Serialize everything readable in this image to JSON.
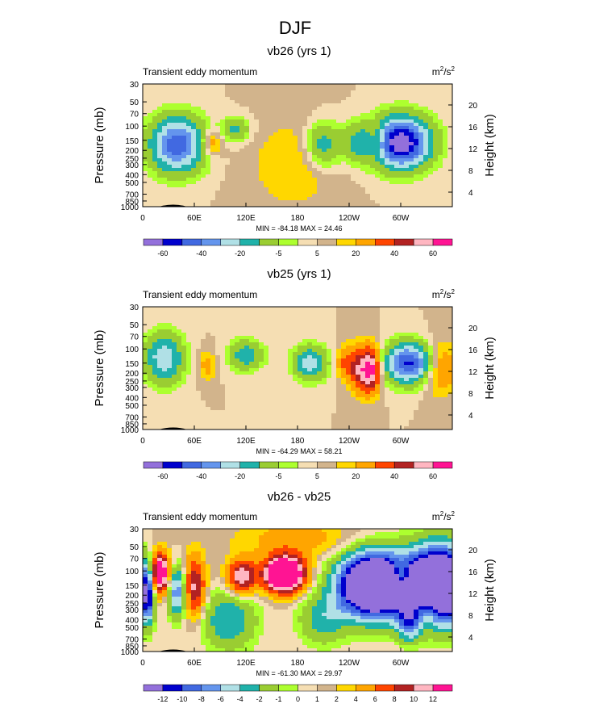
{
  "figure_title": "DJF",
  "chart_data": [
    {
      "type": "heatmap",
      "title": "vb26 (yrs 1)",
      "left_label": "Transient eddy momentum",
      "units_base": "m",
      "units_exp1": "2",
      "units_mid": "/s",
      "units_exp2": "2",
      "ylabel": "Pressure (mb)",
      "ylabel_right": "Height (km)",
      "y_ticks": [
        "30",
        "50",
        "70",
        "100",
        "150",
        "200",
        "250",
        "300",
        "400",
        "500",
        "700",
        "850",
        "1000"
      ],
      "y_right_ticks": [
        "20",
        "16",
        "12",
        "8",
        "4"
      ],
      "x_ticks": [
        "0",
        "60E",
        "120E",
        "180",
        "120W",
        "60W"
      ],
      "min_max_text": "MIN = -84.18  MAX = 24.46",
      "colorbar_labels": [
        "-60",
        "-40",
        "-20",
        "-5",
        "5",
        "20",
        "40",
        "60"
      ],
      "levels": [
        -70,
        -60,
        -50,
        -40,
        -30,
        -20,
        -10,
        -5,
        0,
        5,
        10,
        20,
        30,
        40,
        50,
        60,
        70
      ],
      "blobs": [
        {
          "lon": 40,
          "p": 170,
          "value": -58,
          "wx": 22,
          "wy": 0.55
        },
        {
          "lon": 108,
          "p": 110,
          "value": -22,
          "wx": 12,
          "wy": 0.25
        },
        {
          "lon": 210,
          "p": 170,
          "value": -28,
          "wx": 14,
          "wy": 0.45
        },
        {
          "lon": 300,
          "p": 160,
          "value": -80,
          "wx": 24,
          "wy": 0.5
        },
        {
          "lon": 248,
          "p": 160,
          "value": -18,
          "wx": 12,
          "wy": 0.4
        },
        {
          "lon": 80,
          "p": 160,
          "value": 22,
          "wx": 9,
          "wy": 0.25
        },
        {
          "lon": 273,
          "p": 150,
          "value": 18,
          "wx": 8,
          "wy": 0.35
        },
        {
          "lon": 175,
          "p": 300,
          "value": 10,
          "wx": 35,
          "wy": 0.9
        }
      ]
    },
    {
      "type": "heatmap",
      "title": "vb25 (yrs 1)",
      "left_label": "Transient eddy momentum",
      "units_base": "m",
      "units_exp1": "2",
      "units_mid": "/s",
      "units_exp2": "2",
      "ylabel": "Pressure (mb)",
      "ylabel_right": "Height (km)",
      "y_ticks": [
        "30",
        "50",
        "70",
        "100",
        "150",
        "200",
        "250",
        "300",
        "400",
        "500",
        "700",
        "850",
        "1000"
      ],
      "y_right_ticks": [
        "20",
        "16",
        "12",
        "8",
        "4"
      ],
      "x_ticks": [
        "0",
        "60E",
        "120E",
        "180",
        "120W",
        "60W"
      ],
      "min_max_text": "MIN = -64.29  MAX = 58.21",
      "colorbar_labels": [
        "-60",
        "-40",
        "-20",
        "-5",
        "5",
        "20",
        "40",
        "60"
      ],
      "levels": [
        -70,
        -60,
        -50,
        -40,
        -30,
        -20,
        -10,
        -5,
        0,
        5,
        10,
        20,
        30,
        40,
        50,
        60,
        70
      ],
      "blobs": [
        {
          "lon": 25,
          "p": 130,
          "value": -38,
          "wx": 16,
          "wy": 0.5
        },
        {
          "lon": 120,
          "p": 120,
          "value": -28,
          "wx": 14,
          "wy": 0.3
        },
        {
          "lon": 195,
          "p": 150,
          "value": -35,
          "wx": 14,
          "wy": 0.35
        },
        {
          "lon": 310,
          "p": 150,
          "value": -62,
          "wx": 20,
          "wy": 0.4
        },
        {
          "lon": 265,
          "p": 180,
          "value": 58,
          "wx": 8,
          "wy": 0.45
        },
        {
          "lon": 250,
          "p": 180,
          "value": 30,
          "wx": 7,
          "wy": 0.45
        },
        {
          "lon": 235,
          "p": 150,
          "value": 22,
          "wx": 7,
          "wy": 0.35
        },
        {
          "lon": 345,
          "p": 170,
          "value": 25,
          "wx": 14,
          "wy": 0.5
        },
        {
          "lon": 75,
          "p": 160,
          "value": 14,
          "wx": 7,
          "wy": 0.3
        }
      ]
    },
    {
      "type": "heatmap",
      "title": "vb26 - vb25",
      "left_label": "Transient eddy momentum",
      "units_base": "m",
      "units_exp1": "2",
      "units_mid": "/s",
      "units_exp2": "2",
      "ylabel": "Pressure (mb)",
      "ylabel_right": "Height (km)",
      "y_ticks": [
        "30",
        "50",
        "70",
        "100",
        "150",
        "200",
        "250",
        "300",
        "400",
        "500",
        "700",
        "850",
        "1000"
      ],
      "y_right_ticks": [
        "20",
        "16",
        "12",
        "8",
        "4"
      ],
      "x_ticks": [
        "0",
        "60E",
        "120E",
        "180",
        "120W",
        "60W"
      ],
      "min_max_text": "MIN = -61.30  MAX = 29.97",
      "colorbar_labels": [
        "-12",
        "-10",
        "-8",
        "-6",
        "-4",
        "-2",
        "-1",
        "0",
        "1",
        "2",
        "4",
        "6",
        "8",
        "10",
        "12"
      ],
      "levels": [
        -14,
        -12,
        -10,
        -8,
        -6,
        -4,
        -2,
        -1,
        0,
        1,
        2,
        4,
        6,
        8,
        10,
        12,
        14
      ],
      "blobs": [
        {
          "lon": 270,
          "p": 150,
          "value": -30,
          "wx": 28,
          "wy": 0.6
        },
        {
          "lon": 345,
          "p": 150,
          "value": -30,
          "wx": 26,
          "wy": 0.7
        },
        {
          "lon": 5,
          "p": 180,
          "value": -18,
          "wx": 6,
          "wy": 0.6
        },
        {
          "lon": 40,
          "p": 180,
          "value": -10,
          "wx": 8,
          "wy": 0.5
        },
        {
          "lon": 165,
          "p": 110,
          "value": 20,
          "wx": 16,
          "wy": 0.35
        },
        {
          "lon": 20,
          "p": 110,
          "value": 15,
          "wx": 8,
          "wy": 0.4
        },
        {
          "lon": 60,
          "p": 160,
          "value": 9,
          "wx": 9,
          "wy": 0.6
        },
        {
          "lon": 115,
          "p": 120,
          "value": 10,
          "wx": 12,
          "wy": 0.35
        },
        {
          "lon": 300,
          "p": 120,
          "value": 10,
          "wx": 8,
          "wy": 0.3
        },
        {
          "lon": 100,
          "p": 400,
          "value": -6,
          "wx": 22,
          "wy": 0.6
        },
        {
          "lon": 210,
          "p": 400,
          "value": -5,
          "wx": 20,
          "wy": 0.5
        },
        {
          "lon": 310,
          "p": 450,
          "value": -8,
          "wx": 10,
          "wy": 0.35
        },
        {
          "lon": 330,
          "p": 300,
          "value": 6,
          "wx": 10,
          "wy": 0.4
        },
        {
          "lon": 180,
          "p": 40,
          "value": 3,
          "wx": 50,
          "wy": 0.4
        }
      ]
    }
  ],
  "colors": {
    "palette": [
      "#9370db",
      "#0000cd",
      "#4169e1",
      "#6495ed",
      "#b0e0e6",
      "#20b2aa",
      "#9acd32",
      "#adff2f",
      "#f5deb3",
      "#d2b48c",
      "#ffd700",
      "#ffa500",
      "#ff4500",
      "#b22222",
      "#ffb6c1",
      "#ff1493"
    ],
    "neg_extreme": "#9370db",
    "pos_extreme": "#ff1493"
  }
}
